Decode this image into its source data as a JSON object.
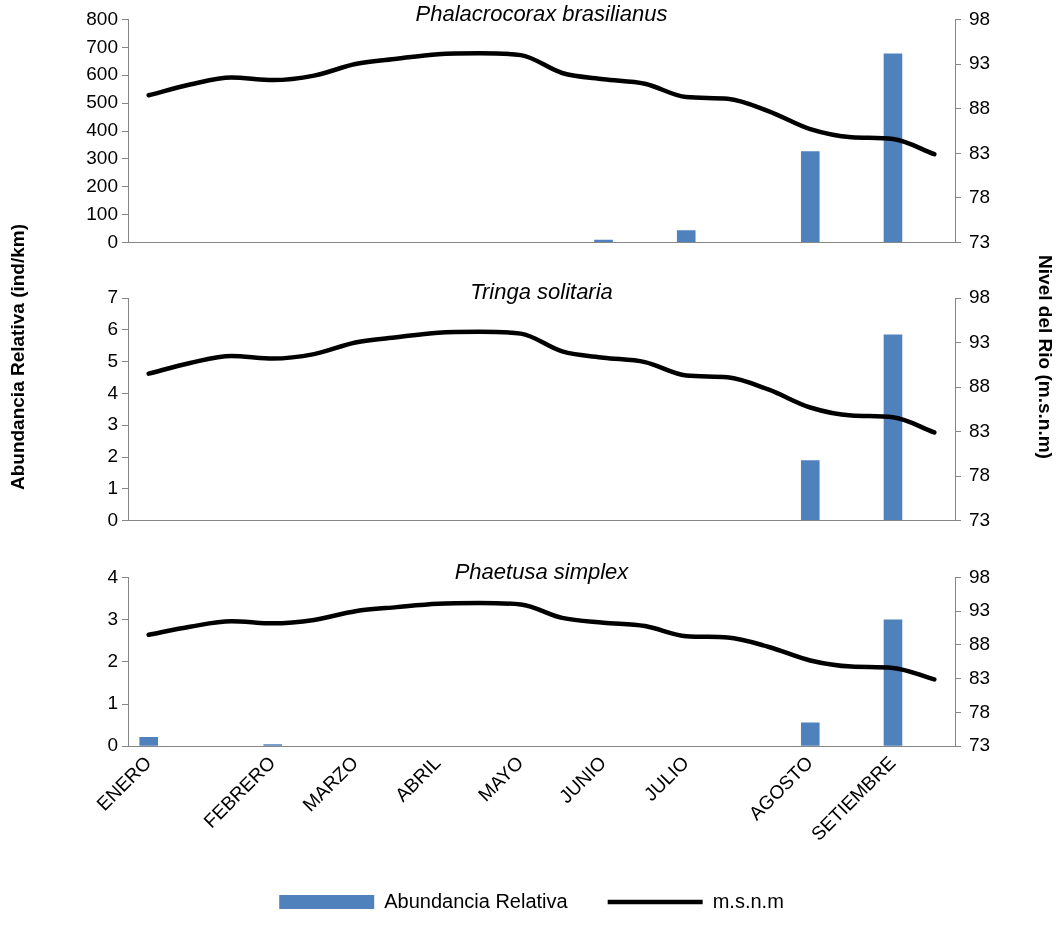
{
  "chart_data": [
    {
      "type": "bar",
      "title": "Phalacrocorax brasilianus",
      "categories": [
        null,
        null,
        null,
        null,
        null,
        null,
        null,
        null,
        null,
        null,
        null,
        null,
        null,
        null,
        null,
        null,
        null,
        null,
        null,
        null
      ],
      "series": [
        {
          "color": "#4f81bd",
          "values": [
            0,
            0,
            0,
            0,
            0,
            0,
            0,
            0,
            0,
            0,
            0,
            10,
            0,
            44,
            0,
            0,
            327,
            0,
            678,
            0
          ]
        },
        {
          "type": "line",
          "axis": "y2",
          "color": "#000000",
          "values": [
            89.5,
            90.7,
            91.5,
            91.2,
            91.7,
            93.0,
            93.6,
            94.1,
            94.2,
            94.0,
            92.0,
            91.3,
            90.8,
            89.3,
            89.1,
            87.7,
            85.7,
            84.8,
            84.6,
            82.9
          ]
        }
      ],
      "ylim": [
        0,
        800
      ],
      "yticks": [
        0,
        100,
        200,
        300,
        400,
        500,
        600,
        700,
        800
      ],
      "y2lim": [
        73,
        98
      ],
      "y2ticks": [
        73,
        78,
        83,
        88,
        93,
        98
      ],
      "tick_labels": "y",
      "grid": false
    },
    {
      "type": "bar",
      "title": "Tringa solitaria",
      "ylabel": "Abundancia Relativa (ind/km)",
      "y2label": "Nivel del Rio (m.s.n.m)",
      "categories": [
        null,
        null,
        null,
        null,
        null,
        null,
        null,
        null,
        null,
        null,
        null,
        null,
        null,
        null,
        null,
        null,
        null,
        null,
        null,
        null
      ],
      "series": [
        {
          "color": "#4f81bd",
          "values": [
            0,
            0,
            0,
            0,
            0,
            0,
            0,
            0,
            0,
            0,
            0,
            0,
            0,
            0,
            0,
            0,
            1.9,
            0,
            5.85,
            0
          ]
        },
        {
          "type": "line",
          "axis": "y2",
          "color": "#000000",
          "values": [
            89.5,
            90.7,
            91.5,
            91.2,
            91.7,
            93.0,
            93.6,
            94.1,
            94.2,
            94.0,
            92.0,
            91.3,
            90.8,
            89.3,
            89.1,
            87.7,
            85.7,
            84.8,
            84.6,
            82.9
          ]
        }
      ],
      "ylim": [
        0,
        7
      ],
      "yticks": [
        0,
        1,
        2,
        3,
        4,
        5,
        6,
        7
      ],
      "y2lim": [
        73,
        98
      ],
      "y2ticks": [
        73,
        78,
        83,
        88,
        93,
        98
      ],
      "tick_labels": "y",
      "grid": false
    },
    {
      "type": "bar",
      "title": "Phaetusa simplex",
      "categories": [
        "ENERO",
        null,
        null,
        "FEBRERO",
        null,
        "MARZO",
        null,
        "ABRIL",
        null,
        "MAYO",
        null,
        "JUNIO",
        null,
        "JULIO",
        null,
        null,
        "AGOSTO",
        null,
        "SETIEMBRE",
        null
      ],
      "series": [
        {
          "name": "Abundancia Relativa",
          "color": "#4f81bd",
          "values": [
            0.22,
            0,
            0,
            0.05,
            0,
            0,
            0,
            0,
            0,
            0,
            0,
            0,
            0,
            0,
            0,
            0,
            0.56,
            0,
            3.0,
            0
          ]
        },
        {
          "name": "m.s.n.m",
          "type": "line",
          "axis": "y2",
          "color": "#000000",
          "values": [
            89.5,
            90.7,
            91.5,
            91.2,
            91.7,
            93.0,
            93.6,
            94.1,
            94.2,
            94.0,
            92.0,
            91.3,
            90.8,
            89.3,
            89.1,
            87.7,
            85.7,
            84.8,
            84.6,
            82.9
          ]
        }
      ],
      "ylim": [
        0,
        4
      ],
      "yticks": [
        0,
        1,
        2,
        3,
        4
      ],
      "y2lim": [
        73,
        98
      ],
      "y2ticks": [
        73,
        78,
        83,
        88,
        93,
        98
      ],
      "legend": "bottom",
      "grid": false
    }
  ]
}
